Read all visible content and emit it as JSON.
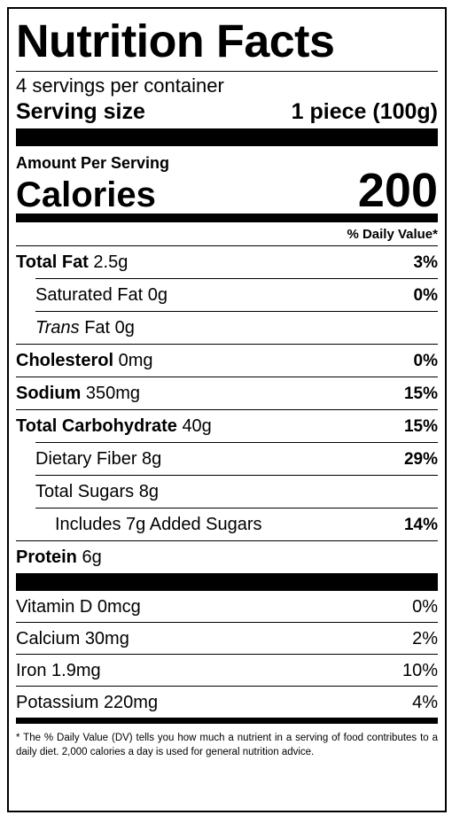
{
  "title": "Nutrition Facts",
  "servings": "4 servings per container",
  "serving_size": {
    "label": "Serving size",
    "value": "1 piece (100g)"
  },
  "amount_per_serving": "Amount Per Serving",
  "calories": {
    "label": "Calories",
    "value": "200"
  },
  "dv_header": "% Daily Value*",
  "nutrients": [
    {
      "name": "Total Fat",
      "amount": "2.5g",
      "dv": "3%"
    },
    {
      "name": "Saturated Fat",
      "amount": "0g",
      "dv": "0%"
    },
    {
      "italic": "Trans",
      "name": "Fat",
      "amount": "0g"
    },
    {
      "name": "Cholesterol",
      "amount": "0mg",
      "dv": "0%"
    },
    {
      "name": "Sodium",
      "amount": "350mg",
      "dv": "15%"
    },
    {
      "name": "Total Carbohydrate",
      "amount": "40g",
      "dv": "15%"
    },
    {
      "name": "Dietary Fiber",
      "amount": "8g",
      "dv": "29%"
    },
    {
      "name": "Total Sugars",
      "amount": "8g"
    },
    {
      "name": "Includes 7g Added Sugars",
      "dv": "14%"
    },
    {
      "name": "Protein",
      "amount": "6g"
    }
  ],
  "vitamins": [
    {
      "name": "Vitamin D",
      "amount": "0mcg",
      "dv": "0%"
    },
    {
      "name": "Calcium",
      "amount": "30mg",
      "dv": "2%"
    },
    {
      "name": "Iron",
      "amount": "1.9mg",
      "dv": "10%"
    },
    {
      "name": "Potassium",
      "amount": "220mg",
      "dv": "4%"
    }
  ],
  "footnote": "* The % Daily Value (DV) tells you how much a nutrient in a serving of food contributes to a daily diet. 2,000 calories a day is used for general nutrition advice."
}
